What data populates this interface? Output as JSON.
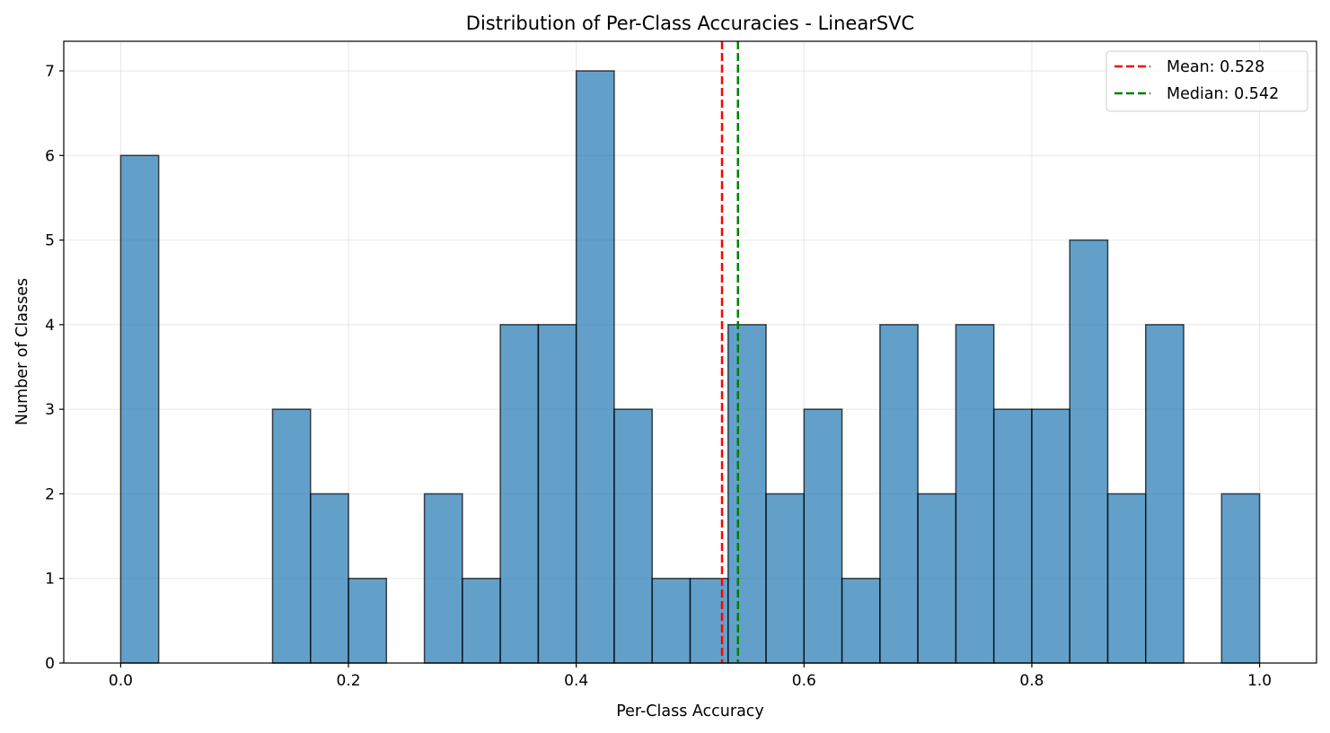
{
  "chart_data": {
    "type": "bar",
    "subtype": "histogram",
    "title": "Distribution of Per-Class Accuracies - LinearSVC",
    "xlabel": "Per-Class Accuracy",
    "ylabel": "Number of Classes",
    "xlim": [
      -0.05,
      1.05
    ],
    "ylim": [
      0,
      7.35
    ],
    "bins": {
      "start": 0.0,
      "end": 1.0,
      "count": 30
    },
    "counts": [
      6,
      0,
      0,
      0,
      3,
      2,
      1,
      0,
      2,
      1,
      4,
      4,
      7,
      3,
      1,
      1,
      4,
      2,
      3,
      1,
      4,
      2,
      4,
      3,
      3,
      5,
      2,
      4,
      0,
      2
    ],
    "x_ticks": [
      {
        "value": 0.0,
        "label": "0.0"
      },
      {
        "value": 0.2,
        "label": "0.2"
      },
      {
        "value": 0.4,
        "label": "0.4"
      },
      {
        "value": 0.6,
        "label": "0.6"
      },
      {
        "value": 0.8,
        "label": "0.8"
      },
      {
        "value": 1.0,
        "label": "1.0"
      }
    ],
    "y_ticks": [
      {
        "value": 0,
        "label": "0"
      },
      {
        "value": 1,
        "label": "1"
      },
      {
        "value": 2,
        "label": "2"
      },
      {
        "value": 3,
        "label": "3"
      },
      {
        "value": 4,
        "label": "4"
      },
      {
        "value": 5,
        "label": "5"
      },
      {
        "value": 6,
        "label": "6"
      },
      {
        "value": 7,
        "label": "7"
      }
    ],
    "reference_lines": [
      {
        "name": "Mean",
        "value": 0.528,
        "label": "Mean: 0.528",
        "color": "#ff0000",
        "style": "dashed"
      },
      {
        "name": "Median",
        "value": 0.542,
        "label": "Median: 0.542",
        "color": "#008000",
        "style": "dashed"
      }
    ],
    "bar_color": "#1f77b4",
    "bar_alpha": 0.7,
    "bar_edge_color": "#000000",
    "grid": true,
    "legend_position": "top-right"
  }
}
